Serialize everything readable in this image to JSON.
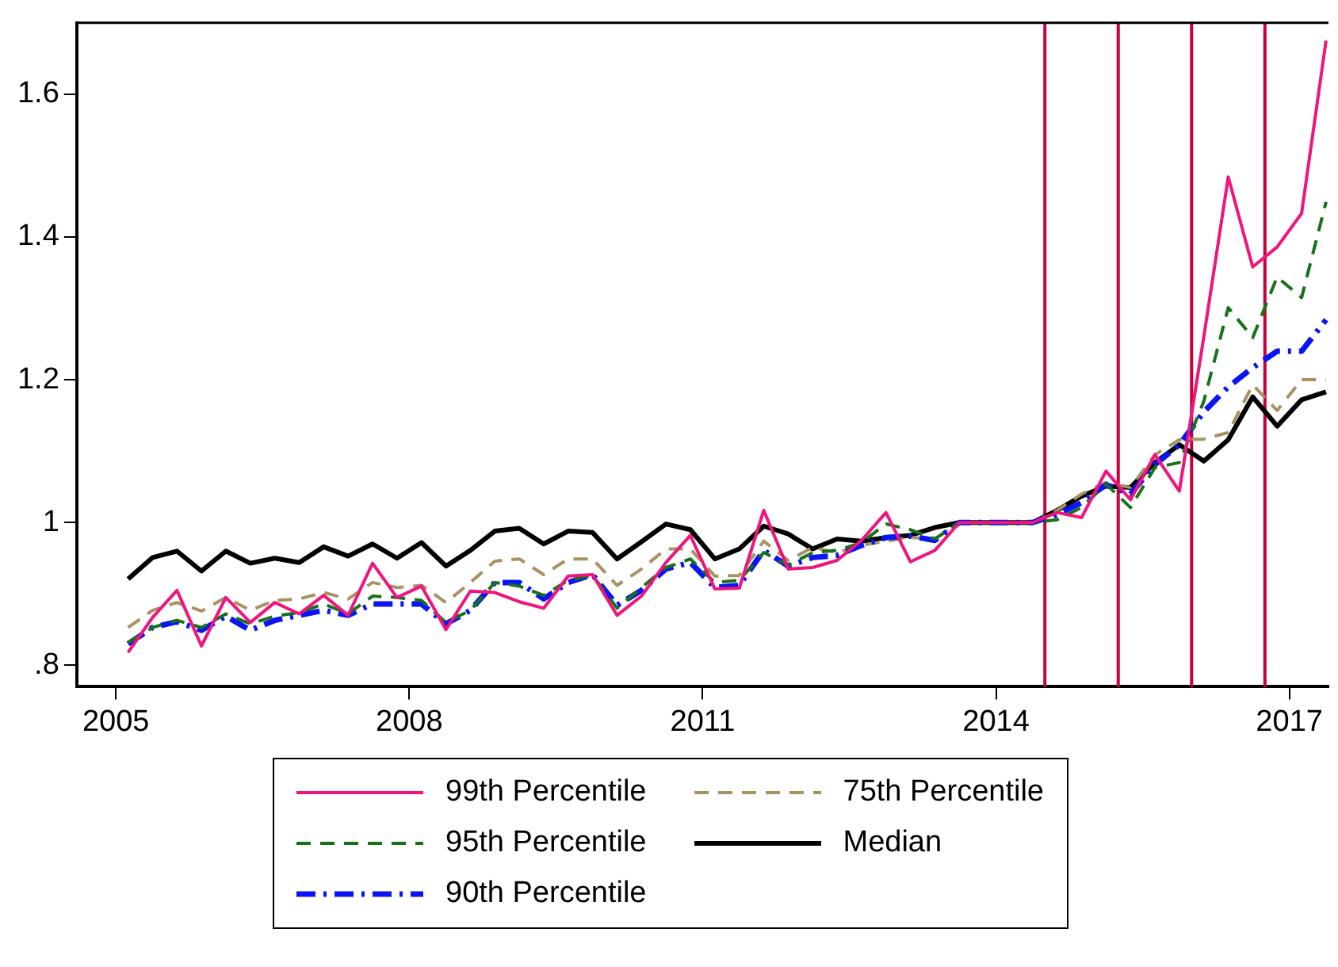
{
  "chart_data": {
    "type": "line",
    "x": [
      2005.125,
      2005.375,
      2005.625,
      2005.875,
      2006.125,
      2006.375,
      2006.625,
      2006.875,
      2007.125,
      2007.375,
      2007.625,
      2007.875,
      2008.125,
      2008.375,
      2008.625,
      2008.875,
      2009.125,
      2009.375,
      2009.625,
      2009.875,
      2010.125,
      2010.375,
      2010.625,
      2010.875,
      2011.125,
      2011.375,
      2011.625,
      2011.875,
      2012.125,
      2012.375,
      2012.625,
      2012.875,
      2013.125,
      2013.375,
      2013.625,
      2013.875,
      2014.125,
      2014.375,
      2014.625,
      2014.875,
      2015.125,
      2015.375,
      2015.625,
      2015.875,
      2016.125,
      2016.375,
      2016.625,
      2016.875,
      2017.125,
      2017.375
    ],
    "series": [
      {
        "name": "99th Percentile",
        "color": "#f0147c",
        "line_style": "solid",
        "values": [
          0.818,
          0.867,
          0.905,
          0.827,
          0.895,
          0.86,
          0.888,
          0.872,
          0.898,
          0.87,
          0.943,
          0.895,
          0.911,
          0.85,
          0.904,
          0.902,
          0.889,
          0.88,
          0.925,
          0.927,
          0.87,
          0.897,
          0.944,
          0.982,
          0.907,
          0.908,
          1.017,
          0.935,
          0.937,
          0.947,
          0.975,
          1.014,
          0.945,
          0.961,
          1.0,
          1.0,
          1.0,
          1.0,
          1.014,
          1.007,
          1.072,
          1.032,
          1.095,
          1.044,
          1.26,
          1.484,
          1.358,
          1.386,
          1.433,
          1.675
        ]
      },
      {
        "name": "95th Percentile",
        "color": "#17701a",
        "line_style": "dashed",
        "values": [
          0.832,
          0.853,
          0.863,
          0.853,
          0.872,
          0.858,
          0.869,
          0.874,
          0.886,
          0.872,
          0.897,
          0.895,
          0.891,
          0.86,
          0.877,
          0.916,
          0.911,
          0.898,
          0.919,
          0.926,
          0.88,
          0.909,
          0.937,
          0.949,
          0.916,
          0.919,
          0.958,
          0.94,
          0.958,
          0.961,
          0.972,
          0.998,
          0.99,
          0.977,
          1.0,
          1.0,
          1.0,
          1.0,
          1.004,
          1.021,
          1.054,
          1.021,
          1.077,
          1.084,
          1.17,
          1.301,
          1.259,
          1.344,
          1.315,
          1.449
        ]
      },
      {
        "name": "90th Percentile",
        "color": "#0a14f5",
        "line_style": "dashdot",
        "values": [
          0.83,
          0.853,
          0.861,
          0.849,
          0.869,
          0.849,
          0.863,
          0.87,
          0.877,
          0.87,
          0.886,
          0.886,
          0.886,
          0.858,
          0.877,
          0.916,
          0.916,
          0.893,
          0.916,
          0.927,
          0.884,
          0.905,
          0.935,
          0.944,
          0.909,
          0.912,
          0.961,
          0.939,
          0.951,
          0.954,
          0.968,
          0.979,
          0.981,
          0.975,
          1.0,
          1.0,
          1.0,
          1.0,
          1.011,
          1.028,
          1.053,
          1.04,
          1.081,
          1.109,
          1.155,
          1.19,
          1.217,
          1.24,
          1.24,
          1.284
        ]
      },
      {
        "name": "75th Percentile",
        "color": "#a89262",
        "line_style": "dashed",
        "values": [
          0.853,
          0.877,
          0.888,
          0.876,
          0.895,
          0.877,
          0.891,
          0.893,
          0.902,
          0.893,
          0.916,
          0.909,
          0.912,
          0.888,
          0.916,
          0.946,
          0.949,
          0.927,
          0.949,
          0.949,
          0.912,
          0.935,
          0.963,
          0.963,
          0.925,
          0.926,
          0.974,
          0.947,
          0.965,
          0.958,
          0.968,
          0.974,
          0.979,
          0.977,
          1.0,
          null,
          null,
          1.0,
          1.017,
          1.04,
          1.056,
          1.049,
          1.095,
          1.116,
          1.117,
          1.126,
          1.193,
          1.157,
          1.2,
          1.2
        ]
      },
      {
        "name": "Median",
        "color": "#000000",
        "line_style": "solid",
        "values": [
          0.921,
          0.951,
          0.96,
          0.932,
          0.96,
          0.943,
          0.95,
          0.944,
          0.966,
          0.953,
          0.97,
          0.95,
          0.972,
          0.939,
          0.961,
          0.988,
          0.992,
          0.97,
          0.988,
          0.986,
          0.949,
          0.973,
          0.998,
          0.99,
          0.949,
          0.963,
          0.995,
          0.984,
          0.963,
          0.977,
          0.974,
          0.979,
          0.982,
          0.993,
          1.0,
          1.0,
          1.0,
          1.0,
          1.017,
          1.037,
          1.051,
          1.049,
          1.084,
          1.109,
          1.086,
          1.116,
          1.176,
          1.135,
          1.172,
          1.183
        ]
      }
    ],
    "xlim": [
      2004.6,
      2017.4
    ],
    "xticks": [
      2005,
      2008,
      2011,
      2014,
      2017
    ],
    "ylim": [
      0.77,
      1.7
    ],
    "yticks": [
      {
        "value": 0.8,
        "label": ".8"
      },
      1,
      1.2,
      1.4,
      1.6
    ],
    "ref_lines": [
      {
        "axis": "x",
        "value": 2014.5,
        "color": "#c8003c"
      },
      {
        "axis": "x",
        "value": 2015.25,
        "color": "#c8003c"
      },
      {
        "axis": "x",
        "value": 2016,
        "color": "#c8003c"
      },
      {
        "axis": "x",
        "value": 2016.75,
        "color": "#c8003c"
      }
    ],
    "grid": false,
    "legend": "bottom",
    "marker": "none"
  }
}
